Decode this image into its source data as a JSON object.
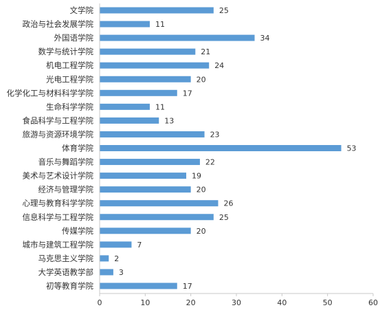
{
  "chart_data": {
    "type": "bar",
    "orientation": "horizontal",
    "title": "",
    "xlabel": "",
    "ylabel": "",
    "categories": [
      "文学院",
      "政治与社会发展学院",
      "外国语学院",
      "数学与统计学院",
      "机电工程学院",
      "光电工程学院",
      "化学化工与材料科学学院",
      "生命科学学院",
      "食品科学与工程学院",
      "旅游与资源环境学院",
      "体育学院",
      "音乐与舞蹈学院",
      "美术与艺术设计学院",
      "经济与管理学院",
      "心理与教育科学学院",
      "信息科学与工程学院",
      "传媒学院",
      "城市与建筑工程学院",
      "马克思主义学院",
      "大学英语教学部",
      "初等教育学院"
    ],
    "values": [
      25,
      11,
      34,
      21,
      24,
      20,
      17,
      11,
      13,
      23,
      53,
      22,
      19,
      20,
      26,
      25,
      20,
      7,
      2,
      3,
      17
    ],
    "xlim": [
      0,
      60
    ],
    "xticks": [
      "0",
      "10",
      "20",
      "30",
      "40",
      "50",
      "60"
    ],
    "grid": false,
    "legend": "none",
    "bar_color": "#5b9bd5"
  }
}
